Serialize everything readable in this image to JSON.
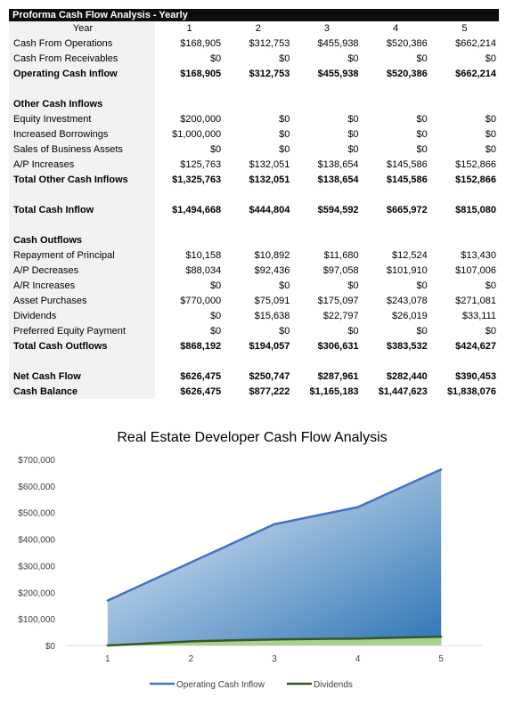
{
  "table": {
    "title": "Proforma Cash Flow Analysis - Yearly",
    "header": {
      "label": "Year",
      "years": [
        "1",
        "2",
        "3",
        "4",
        "5"
      ]
    },
    "rows": [
      {
        "label": "Cash From Operations",
        "values": [
          "$168,905",
          "$312,753",
          "$455,938",
          "$520,386",
          "$662,214"
        ],
        "bold": false
      },
      {
        "label": "Cash From Receivables",
        "values": [
          "$0",
          "$0",
          "$0",
          "$0",
          "$0"
        ],
        "bold": false
      },
      {
        "label": "Operating Cash Inflow",
        "values": [
          "$168,905",
          "$312,753",
          "$455,938",
          "$520,386",
          "$662,214"
        ],
        "bold": true
      },
      {
        "spacer": true
      },
      {
        "label": "Other Cash Inflows",
        "values": [
          "",
          "",
          "",
          "",
          ""
        ],
        "bold": true
      },
      {
        "label": "Equity Investment",
        "values": [
          "$200,000",
          "$0",
          "$0",
          "$0",
          "$0"
        ],
        "bold": false
      },
      {
        "label": "Increased Borrowings",
        "values": [
          "$1,000,000",
          "$0",
          "$0",
          "$0",
          "$0"
        ],
        "bold": false
      },
      {
        "label": "Sales of Business Assets",
        "values": [
          "$0",
          "$0",
          "$0",
          "$0",
          "$0"
        ],
        "bold": false
      },
      {
        "label": "A/P Increases",
        "values": [
          "$125,763",
          "$132,051",
          "$138,654",
          "$145,586",
          "$152,866"
        ],
        "bold": false
      },
      {
        "label": "Total Other Cash Inflows",
        "values": [
          "$1,325,763",
          "$132,051",
          "$138,654",
          "$145,586",
          "$152,866"
        ],
        "bold": true
      },
      {
        "spacer": true
      },
      {
        "label": "Total Cash Inflow",
        "values": [
          "$1,494,668",
          "$444,804",
          "$594,592",
          "$665,972",
          "$815,080"
        ],
        "bold": true
      },
      {
        "spacer": true
      },
      {
        "label": "Cash Outflows",
        "values": [
          "",
          "",
          "",
          "",
          ""
        ],
        "bold": true
      },
      {
        "label": "Repayment of Principal",
        "values": [
          "$10,158",
          "$10,892",
          "$11,680",
          "$12,524",
          "$13,430"
        ],
        "bold": false
      },
      {
        "label": "A/P Decreases",
        "values": [
          "$88,034",
          "$92,436",
          "$97,058",
          "$101,910",
          "$107,006"
        ],
        "bold": false
      },
      {
        "label": "A/R Increases",
        "values": [
          "$0",
          "$0",
          "$0",
          "$0",
          "$0"
        ],
        "bold": false
      },
      {
        "label": "Asset Purchases",
        "values": [
          "$770,000",
          "$75,091",
          "$175,097",
          "$243,078",
          "$271,081"
        ],
        "bold": false
      },
      {
        "label": "Dividends",
        "values": [
          "$0",
          "$15,638",
          "$22,797",
          "$26,019",
          "$33,111"
        ],
        "bold": false
      },
      {
        "label": "Preferred Equity Payment",
        "values": [
          "$0",
          "$0",
          "$0",
          "$0",
          "$0"
        ],
        "bold": false
      },
      {
        "label": "Total Cash Outflows",
        "values": [
          "$868,192",
          "$194,057",
          "$306,631",
          "$383,532",
          "$424,627"
        ],
        "bold": true
      },
      {
        "spacer": true
      },
      {
        "label": "Net Cash Flow",
        "values": [
          "$626,475",
          "$250,747",
          "$287,961",
          "$282,440",
          "$390,453"
        ],
        "bold": true
      },
      {
        "label": "Cash Balance",
        "values": [
          "$626,475",
          "$877,222",
          "$1,165,183",
          "$1,447,623",
          "$1,838,076"
        ],
        "bold": true
      }
    ]
  },
  "chart_data": {
    "type": "area",
    "title": "Real Estate Developer Cash Flow Analysis",
    "x": [
      1,
      2,
      3,
      4,
      5
    ],
    "series": [
      {
        "name": "Operating Cash Inflow",
        "values": [
          168905,
          312753,
          455938,
          520386,
          662214
        ],
        "color": "#4472c4"
      },
      {
        "name": "Dividends",
        "values": [
          0,
          15638,
          22797,
          26019,
          33111
        ],
        "color": "#375623"
      }
    ],
    "ylim": [
      0,
      700000
    ],
    "yticks": [
      "$0",
      "$100,000",
      "$200,000",
      "$300,000",
      "$400,000",
      "$500,000",
      "$600,000",
      "$700,000"
    ],
    "xticks": [
      "1",
      "2",
      "3",
      "4",
      "5"
    ],
    "xlabel": "",
    "ylabel": "",
    "grid": false,
    "legend": "bottom",
    "colors": {
      "area_light": "#f0f4fa",
      "area_dark": "#2e75b6",
      "div_fill": "#a9d18e"
    }
  }
}
